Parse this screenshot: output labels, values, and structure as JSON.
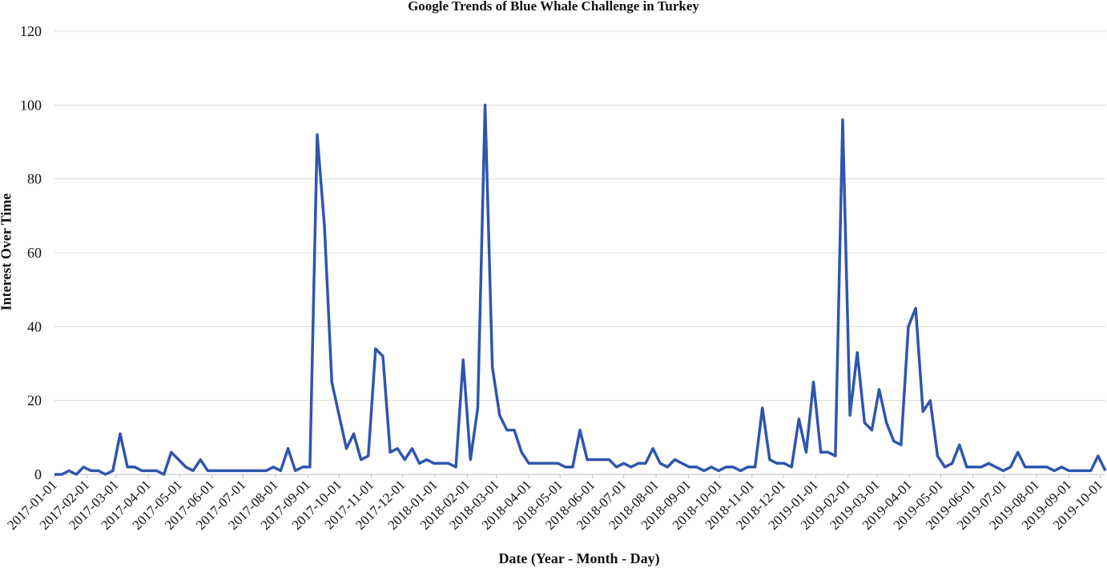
{
  "chart_data": {
    "type": "line",
    "title": "Google Trends of Blue Whale Challenge in Turkey",
    "xlabel": "Date (Year - Month - Day)",
    "ylabel": "Interest Over Time",
    "ylim": [
      0,
      120
    ],
    "yticks": [
      0,
      20,
      40,
      60,
      80,
      100,
      120
    ],
    "x_tick_labels": [
      "2017-01-01",
      "2017-02-01",
      "2017-03-01",
      "2017-04-01",
      "2017-05-01",
      "2017-06-01",
      "2017-07-01",
      "2017-08-01",
      "2017-09-01",
      "2017-10-01",
      "2017-11-01",
      "2017-12-01",
      "2018-01-01",
      "2018-02-01",
      "2018-03-01",
      "2018-04-01",
      "2018-05-01",
      "2018-06-01",
      "2018-07-01",
      "2018-08-01",
      "2018-09-01",
      "2018-10-01",
      "2018-11-01",
      "2018-12-01",
      "2019-01-01",
      "2019-02-01",
      "2019-03-01",
      "2019-04-01",
      "2019-05-01",
      "2019-06-01",
      "2019-07-01",
      "2019-08-01",
      "2019-09-01",
      "2019-10-01"
    ],
    "grid": true,
    "color": "#2f56ad",
    "series": [
      {
        "x": [
          "2017-01-01",
          "2017-01-08",
          "2017-01-15",
          "2017-01-22",
          "2017-01-29",
          "2017-02-05",
          "2017-02-12",
          "2017-02-19",
          "2017-02-26",
          "2017-03-05",
          "2017-03-12",
          "2017-03-19",
          "2017-03-26",
          "2017-04-02",
          "2017-04-09",
          "2017-04-16",
          "2017-04-23",
          "2017-04-30",
          "2017-05-07",
          "2017-05-14",
          "2017-05-21",
          "2017-05-28",
          "2017-06-04",
          "2017-06-11",
          "2017-06-18",
          "2017-06-25",
          "2017-07-02",
          "2017-07-09",
          "2017-07-16",
          "2017-07-23",
          "2017-07-30",
          "2017-08-06",
          "2017-08-13",
          "2017-08-20",
          "2017-08-27",
          "2017-09-03",
          "2017-09-10",
          "2017-09-17",
          "2017-09-24",
          "2017-10-01",
          "2017-10-08",
          "2017-10-15",
          "2017-10-22",
          "2017-10-29",
          "2017-11-05",
          "2017-11-12",
          "2017-11-19",
          "2017-11-26",
          "2017-12-03",
          "2017-12-10",
          "2017-12-17",
          "2017-12-24",
          "2017-12-31",
          "2018-01-07",
          "2018-01-14",
          "2018-01-21",
          "2018-01-28",
          "2018-02-04",
          "2018-02-11",
          "2018-02-18",
          "2018-02-25",
          "2018-03-04",
          "2018-03-11",
          "2018-03-18",
          "2018-03-25",
          "2018-04-01",
          "2018-04-08",
          "2018-04-15",
          "2018-04-22",
          "2018-04-29",
          "2018-05-06",
          "2018-05-13",
          "2018-05-20",
          "2018-05-27",
          "2018-06-03",
          "2018-06-10",
          "2018-06-17",
          "2018-06-24",
          "2018-07-01",
          "2018-07-08",
          "2018-07-15",
          "2018-07-22",
          "2018-07-29",
          "2018-08-05",
          "2018-08-12",
          "2018-08-19",
          "2018-08-26",
          "2018-09-02",
          "2018-09-09",
          "2018-09-16",
          "2018-09-23",
          "2018-09-30",
          "2018-10-07",
          "2018-10-14",
          "2018-10-21",
          "2018-10-28",
          "2018-11-04",
          "2018-11-11",
          "2018-11-18",
          "2018-11-25",
          "2018-12-02",
          "2018-12-09",
          "2018-12-16",
          "2018-12-23",
          "2018-12-30",
          "2019-01-06",
          "2019-01-13",
          "2019-01-20",
          "2019-01-27",
          "2019-02-03",
          "2019-02-10",
          "2019-02-17",
          "2019-02-24",
          "2019-03-03",
          "2019-03-10",
          "2019-03-17",
          "2019-03-24",
          "2019-03-31",
          "2019-04-07",
          "2019-04-14",
          "2019-04-21",
          "2019-04-28",
          "2019-05-05",
          "2019-05-12",
          "2019-05-19",
          "2019-05-26",
          "2019-06-02",
          "2019-06-09",
          "2019-06-16",
          "2019-06-23",
          "2019-06-30",
          "2019-07-07",
          "2019-07-14",
          "2019-07-21",
          "2019-07-28",
          "2019-08-04",
          "2019-08-11",
          "2019-08-18",
          "2019-08-25",
          "2019-09-01",
          "2019-09-08",
          "2019-09-15",
          "2019-09-22",
          "2019-09-29",
          "2019-10-06"
        ],
        "values": [
          0,
          0,
          1,
          0,
          2,
          1,
          1,
          0,
          1,
          11,
          2,
          2,
          1,
          1,
          1,
          0,
          6,
          4,
          2,
          1,
          4,
          1,
          1,
          1,
          1,
          1,
          1,
          1,
          1,
          1,
          2,
          1,
          7,
          1,
          2,
          2,
          92,
          67,
          25,
          16,
          7,
          11,
          4,
          5,
          34,
          32,
          6,
          7,
          4,
          7,
          3,
          4,
          3,
          3,
          3,
          2,
          31,
          4,
          18,
          100,
          29,
          16,
          12,
          12,
          6,
          3,
          3,
          3,
          3,
          3,
          2,
          2,
          12,
          4,
          4,
          4,
          4,
          2,
          3,
          2,
          3,
          3,
          7,
          3,
          2,
          4,
          3,
          2,
          2,
          1,
          2,
          1,
          2,
          2,
          1,
          2,
          2,
          18,
          4,
          3,
          3,
          2,
          15,
          6,
          25,
          6,
          6,
          5,
          96,
          16,
          33,
          14,
          12,
          23,
          14,
          9,
          8,
          40,
          45,
          17,
          20,
          5,
          2,
          3,
          8,
          2,
          2,
          2,
          3,
          2,
          1,
          2,
          6,
          2,
          2,
          2,
          2,
          1,
          2,
          1,
          1,
          1,
          1,
          5,
          1
        ]
      }
    ]
  }
}
